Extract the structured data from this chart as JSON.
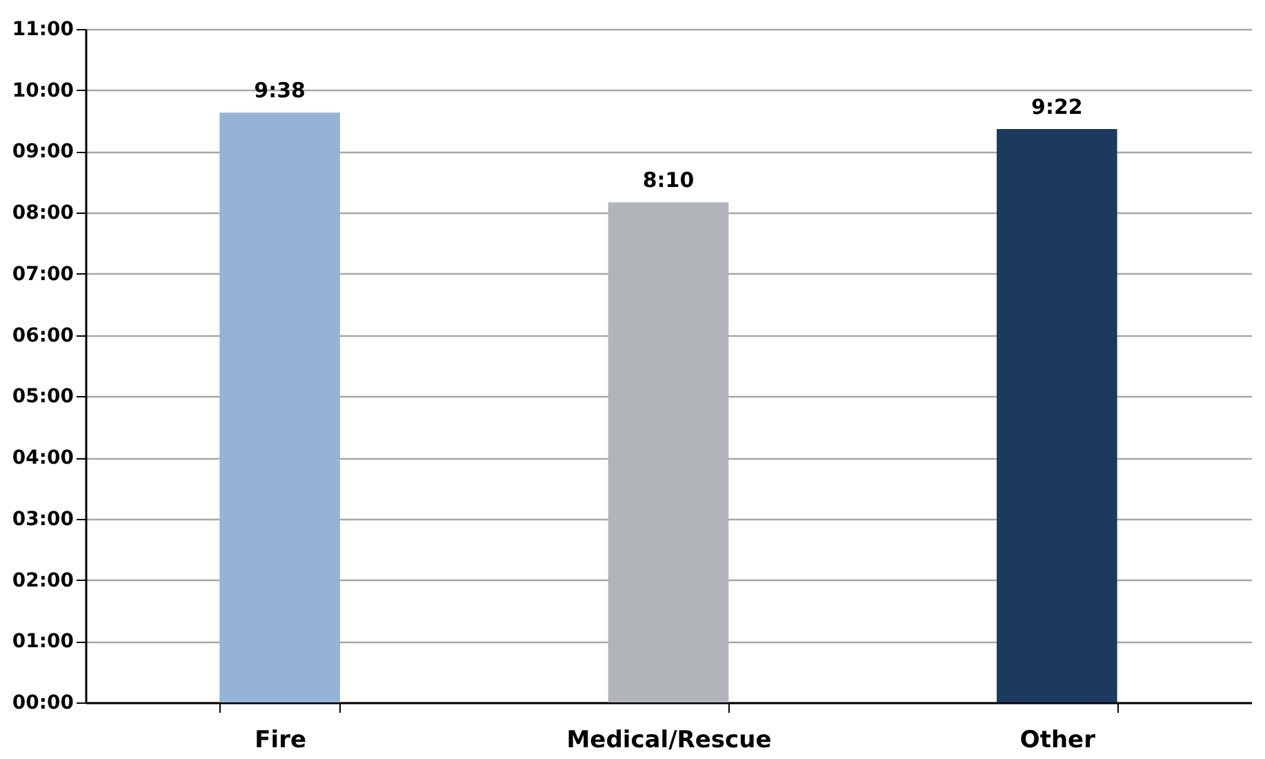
{
  "chart_data": {
    "type": "bar",
    "categories": [
      "Fire",
      "Medical/Rescue",
      "Other"
    ],
    "values": [
      9.633,
      8.167,
      9.367
    ],
    "colors": [
      "#95b3d7",
      "#b1b4b8",
      "#1b3a5e"
    ],
    "value_labels": [
      "9:38",
      "8:10",
      "9:22"
    ],
    "ylim": [
      0,
      11
    ],
    "yticks": [
      {
        "value": 0,
        "label": "00:00"
      },
      {
        "value": 1,
        "label": "01:00"
      },
      {
        "value": 2,
        "label": "02:00"
      },
      {
        "value": 3,
        "label": "03:00"
      },
      {
        "value": 4,
        "label": "04:00"
      },
      {
        "value": 5,
        "label": "05:00"
      },
      {
        "value": 6,
        "label": "06:00"
      },
      {
        "value": 7,
        "label": "07:00"
      },
      {
        "value": 8,
        "label": "08:00"
      },
      {
        "value": 9,
        "label": "09:00"
      },
      {
        "value": 10,
        "label": "10:00"
      },
      {
        "value": 11,
        "label": "11:00"
      }
    ],
    "grid": "y",
    "legend": false
  }
}
